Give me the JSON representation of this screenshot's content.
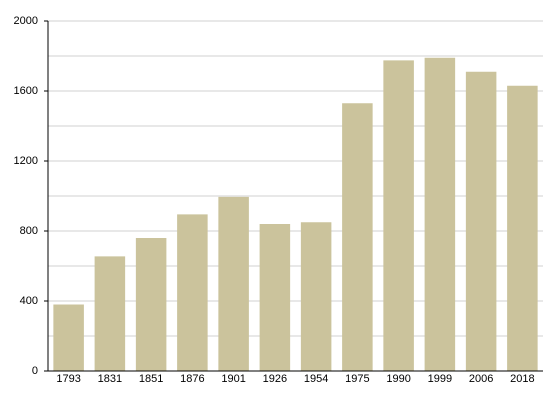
{
  "chart_data": {
    "type": "bar",
    "categories": [
      "1793",
      "1831",
      "1851",
      "1876",
      "1901",
      "1926",
      "1954",
      "1975",
      "1990",
      "1999",
      "2006",
      "2018"
    ],
    "values": [
      380,
      655,
      760,
      895,
      995,
      840,
      850,
      1530,
      1775,
      1790,
      1710,
      1630
    ],
    "color": "#cbc39c",
    "ylim": [
      0,
      2000
    ],
    "yticks": [
      0,
      400,
      800,
      1200,
      1600,
      2000
    ],
    "minor_yticks": [
      200,
      600,
      1000,
      1400,
      1800
    ],
    "grid": true
  }
}
